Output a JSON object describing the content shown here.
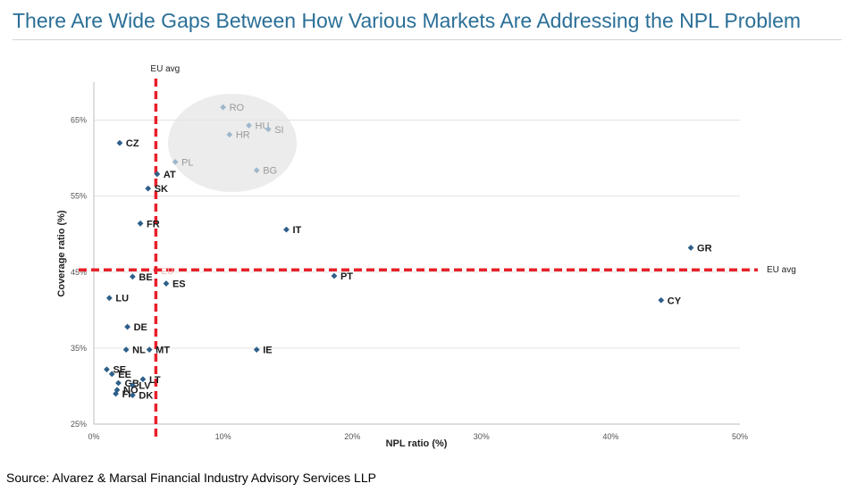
{
  "header": {
    "title": "There Are Wide Gaps Between How Various Markets Are Addressing the NPL Problem"
  },
  "footer": {
    "source": "Source: Alvarez & Marsal Financial Industry Advisory Services LLP"
  },
  "chart_data": {
    "type": "scatter",
    "xlabel": "NPL ratio (%)",
    "ylabel": "Coverage ratio (%)",
    "xlim": [
      0,
      50
    ],
    "ylim": [
      25,
      70
    ],
    "x_ticks": [
      0,
      10,
      20,
      30,
      40,
      50
    ],
    "x_tick_labels": [
      "0%",
      "10%",
      "20%",
      "30%",
      "40%",
      "50%"
    ],
    "y_ticks": [
      25,
      35,
      45,
      55,
      65
    ],
    "y_tick_labels": [
      "25%",
      "35%",
      "45%",
      "55%",
      "65%"
    ],
    "grid": "horizontal",
    "eu_avg": {
      "x": 4.8,
      "y": 45.3,
      "x_label": "EU avg",
      "y_label": "EU avg",
      "point_label": "EU",
      "color": "#e8202a"
    },
    "highlight_group": [
      "RO",
      "HU",
      "SI",
      "HR",
      "PL",
      "BG"
    ],
    "point_color": "#2e5f8a",
    "faded_point_color": "#9fb7cc",
    "points": [
      {
        "label": "RO",
        "x": 10.0,
        "y": 66.7
      },
      {
        "label": "HU",
        "x": 12.0,
        "y": 64.3
      },
      {
        "label": "SI",
        "x": 13.5,
        "y": 63.8
      },
      {
        "label": "HR",
        "x": 10.5,
        "y": 63.1
      },
      {
        "label": "PL",
        "x": 6.3,
        "y": 59.5
      },
      {
        "label": "BG",
        "x": 12.6,
        "y": 58.4
      },
      {
        "label": "CZ",
        "x": 2.0,
        "y": 62.0
      },
      {
        "label": "AT",
        "x": 4.9,
        "y": 57.9
      },
      {
        "label": "SK",
        "x": 4.2,
        "y": 56.0
      },
      {
        "label": "FR",
        "x": 3.6,
        "y": 51.4
      },
      {
        "label": "IT",
        "x": 14.9,
        "y": 50.6
      },
      {
        "label": "GR",
        "x": 46.2,
        "y": 48.2
      },
      {
        "label": "PT",
        "x": 18.6,
        "y": 44.5
      },
      {
        "label": "BE",
        "x": 3.0,
        "y": 44.4
      },
      {
        "label": "ES",
        "x": 5.6,
        "y": 43.5
      },
      {
        "label": "CY",
        "x": 43.9,
        "y": 41.3
      },
      {
        "label": "LU",
        "x": 1.2,
        "y": 41.6
      },
      {
        "label": "DE",
        "x": 2.6,
        "y": 37.8
      },
      {
        "label": "NL",
        "x": 2.5,
        "y": 34.8
      },
      {
        "label": "MT",
        "x": 4.3,
        "y": 34.8
      },
      {
        "label": "IE",
        "x": 12.6,
        "y": 34.8
      },
      {
        "label": "SE",
        "x": 1.0,
        "y": 32.2
      },
      {
        "label": "EE",
        "x": 1.4,
        "y": 31.6
      },
      {
        "label": "LT",
        "x": 3.8,
        "y": 30.9
      },
      {
        "label": "GB",
        "x": 1.9,
        "y": 30.4
      },
      {
        "label": "LV",
        "x": 3.0,
        "y": 30.1
      },
      {
        "label": "FI",
        "x": 1.7,
        "y": 29.0
      },
      {
        "label": "NO",
        "x": 1.8,
        "y": 29.5
      },
      {
        "label": "DK",
        "x": 3.0,
        "y": 28.8
      }
    ]
  }
}
